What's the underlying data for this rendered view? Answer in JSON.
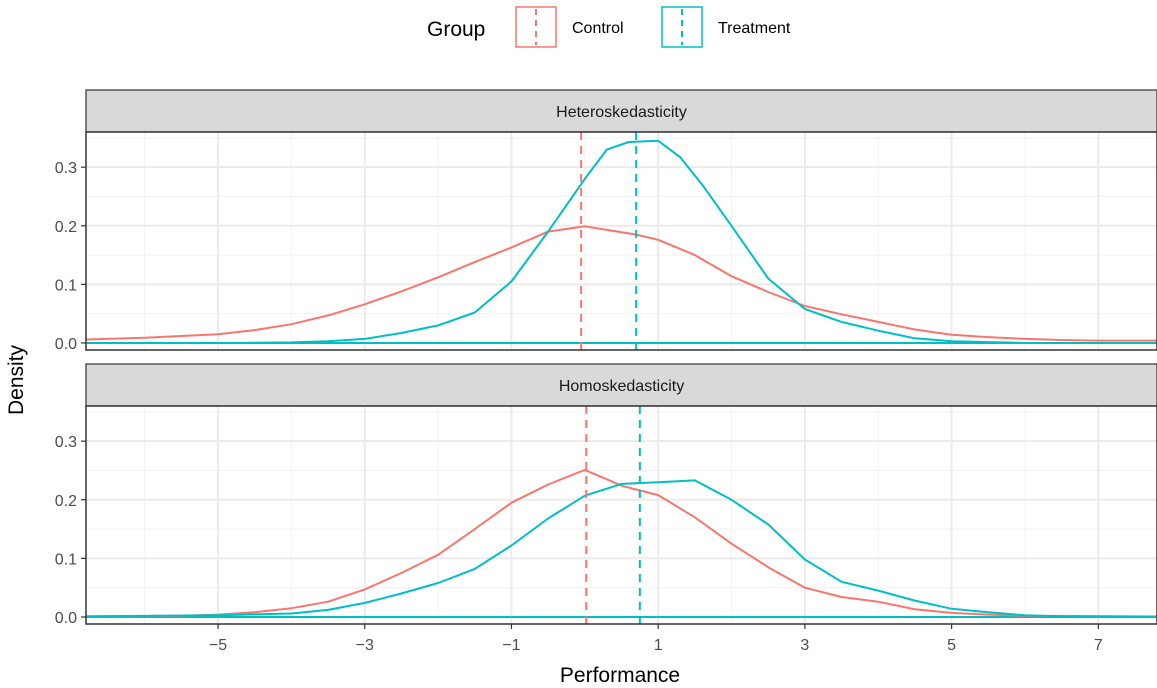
{
  "chart_data": {
    "type": "line",
    "xlabel": "Performance",
    "ylabel": "Density",
    "xlim": [
      -6.8,
      7.8
    ],
    "ylim": [
      -0.012,
      0.36
    ],
    "x_ticks": [
      -5,
      -3,
      -1,
      1,
      3,
      5,
      7
    ],
    "x_tick_labels": [
      "−5",
      "−3",
      "−1",
      "1",
      "3",
      "5",
      "7"
    ],
    "y_ticks": [
      0.0,
      0.1,
      0.2,
      0.3
    ],
    "y_tick_labels": [
      "0.0",
      "0.1",
      "0.2",
      "0.3"
    ],
    "grid": true,
    "legend": {
      "title": "Group",
      "position": "top",
      "entries": [
        {
          "name": "Control",
          "color": "#F8766D"
        },
        {
          "name": "Treatment",
          "color": "#00BFC4"
        }
      ]
    },
    "panels": [
      {
        "title": "Heteroskedasticity",
        "series": [
          {
            "name": "Control",
            "color": "#F8766D",
            "mean": -0.05,
            "x": [
              -6.8,
              -6.0,
              -5.0,
              -4.5,
              -4.0,
              -3.5,
              -3.0,
              -2.5,
              -2.0,
              -1.5,
              -1.0,
              -0.5,
              0.0,
              0.3,
              0.7,
              1.0,
              1.5,
              2.0,
              2.5,
              3.0,
              3.5,
              4.0,
              4.5,
              5.0,
              5.5,
              6.0,
              6.5,
              7.0,
              7.8
            ],
            "y": [
              0.006,
              0.009,
              0.015,
              0.022,
              0.032,
              0.047,
              0.066,
              0.088,
              0.112,
              0.138,
              0.163,
              0.19,
              0.199,
              0.193,
              0.185,
              0.176,
              0.15,
              0.114,
              0.087,
              0.063,
              0.049,
              0.036,
              0.023,
              0.014,
              0.01,
              0.007,
              0.005,
              0.004,
              0.004
            ]
          },
          {
            "name": "Treatment",
            "color": "#00BFC4",
            "mean": 0.7,
            "x": [
              -6.8,
              -5.0,
              -4.0,
              -3.5,
              -3.0,
              -2.5,
              -2.0,
              -1.5,
              -1.0,
              -0.5,
              0.0,
              0.3,
              0.6,
              1.0,
              1.3,
              1.6,
              2.0,
              2.5,
              3.0,
              3.5,
              4.0,
              4.5,
              5.0,
              6.0,
              7.8
            ],
            "y": [
              0.0,
              0.0,
              0.001,
              0.003,
              0.007,
              0.017,
              0.03,
              0.052,
              0.105,
              0.19,
              0.28,
              0.33,
              0.343,
              0.345,
              0.317,
              0.27,
              0.2,
              0.11,
              0.058,
              0.036,
              0.021,
              0.008,
              0.003,
              0.0,
              0.0
            ]
          }
        ]
      },
      {
        "title": "Homoskedasticity",
        "series": [
          {
            "name": "Control",
            "color": "#F8766D",
            "mean": 0.02,
            "x": [
              -6.8,
              -5.5,
              -5.0,
              -4.5,
              -4.0,
              -3.5,
              -3.0,
              -2.5,
              -2.0,
              -1.5,
              -1.0,
              -0.5,
              0.0,
              0.3,
              0.5,
              1.0,
              1.5,
              2.0,
              2.5,
              3.0,
              3.5,
              4.0,
              4.5,
              5.0,
              5.5,
              6.0,
              7.8
            ],
            "y": [
              0.001,
              0.002,
              0.004,
              0.008,
              0.015,
              0.026,
              0.047,
              0.075,
              0.106,
              0.15,
              0.195,
              0.226,
              0.251,
              0.235,
              0.224,
              0.208,
              0.17,
              0.125,
              0.085,
              0.05,
              0.034,
              0.026,
              0.013,
              0.007,
              0.004,
              0.002,
              0.001
            ]
          },
          {
            "name": "Treatment",
            "color": "#00BFC4",
            "mean": 0.75,
            "x": [
              -6.8,
              -5.0,
              -4.0,
              -3.5,
              -3.0,
              -2.5,
              -2.0,
              -1.5,
              -1.0,
              -0.5,
              0.0,
              0.5,
              1.0,
              1.5,
              2.0,
              2.5,
              3.0,
              3.5,
              4.0,
              4.5,
              5.0,
              5.5,
              6.0,
              6.5,
              7.8
            ],
            "y": [
              0.001,
              0.003,
              0.006,
              0.012,
              0.024,
              0.04,
              0.058,
              0.082,
              0.122,
              0.168,
              0.207,
              0.227,
              0.23,
              0.233,
              0.2,
              0.158,
              0.098,
              0.06,
              0.045,
              0.028,
              0.014,
              0.008,
              0.003,
              0.001,
              0.0
            ]
          }
        ]
      }
    ]
  }
}
